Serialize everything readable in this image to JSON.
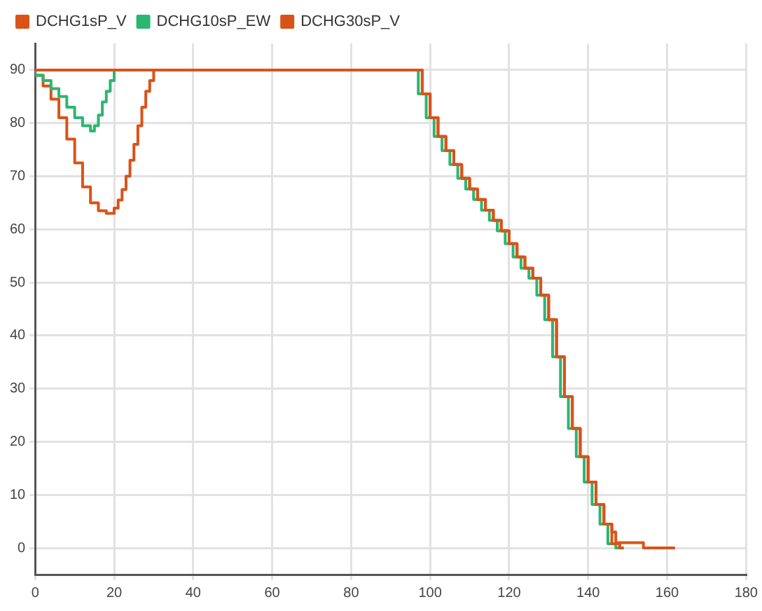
{
  "chart_data": {
    "type": "step",
    "xlim": [
      0,
      180
    ],
    "xticks": [
      0,
      20,
      40,
      60,
      80,
      100,
      120,
      140,
      160,
      180
    ],
    "ylim": [
      -5,
      95
    ],
    "yticks": [
      0,
      10,
      20,
      30,
      40,
      50,
      60,
      70,
      80,
      90
    ],
    "grid": true,
    "legend": "top left",
    "marker": "none",
    "line_style": "solid",
    "series": [
      {
        "name": "DCHG1sP_V",
        "color": "#d95319",
        "x": [
          0,
          98,
          100,
          102,
          104,
          106,
          108,
          110,
          112,
          114,
          116,
          118,
          120,
          122,
          124,
          126,
          128,
          130,
          132,
          134,
          136,
          138,
          140,
          142,
          144,
          146,
          148,
          149
        ],
        "values": [
          90,
          90,
          85.5,
          81,
          77.5,
          74.8,
          72.2,
          69.6,
          67.6,
          65.6,
          63.6,
          61.7,
          59.7,
          57.3,
          54.8,
          52.7,
          50.8,
          47.6,
          43,
          36,
          28.5,
          22.5,
          17.2,
          12.4,
          8.2,
          4.5,
          0.8,
          0
        ]
      },
      {
        "name": "DCHG10sP_EW",
        "color": "#2bb673",
        "x": [
          0,
          2,
          4,
          6,
          8,
          10,
          12,
          14,
          15,
          16,
          17,
          18,
          19,
          20,
          21,
          97,
          99,
          101,
          103,
          105,
          107,
          109,
          111,
          113,
          115,
          117,
          119,
          121,
          123,
          125,
          127,
          129,
          131,
          133,
          135,
          137,
          139,
          141,
          143,
          145,
          147,
          148,
          149
        ],
        "values": [
          90,
          89,
          88,
          86.5,
          85,
          83,
          81,
          79.5,
          78.5,
          79.5,
          81.5,
          84,
          86,
          88,
          90,
          90,
          85.5,
          81,
          77.5,
          74.8,
          72.2,
          69.6,
          67.6,
          65.6,
          63.6,
          61.7,
          59.7,
          57.3,
          54.8,
          52.7,
          50.8,
          47.6,
          43,
          36,
          28.5,
          22.5,
          17.2,
          12.4,
          8.2,
          4.5,
          0.8,
          0,
          0
        ]
      },
      {
        "name": "DCHG30sP_V",
        "color": "#d95319",
        "x": [
          0,
          2,
          4,
          6,
          8,
          10,
          12,
          14,
          16,
          18,
          19,
          20,
          21,
          22,
          23,
          24,
          25,
          26,
          27,
          28,
          29,
          30,
          31,
          98,
          100,
          102,
          104,
          106,
          108,
          110,
          112,
          114,
          116,
          118,
          120,
          122,
          124,
          126,
          128,
          130,
          132,
          134,
          136,
          138,
          140,
          142,
          144,
          146,
          147,
          154,
          155,
          162
        ],
        "values": [
          90,
          89,
          87,
          84.5,
          81,
          77,
          72.5,
          68,
          65,
          63.5,
          63,
          63,
          64,
          65.5,
          67.5,
          70,
          73,
          76,
          79.5,
          83,
          86,
          88,
          90,
          90,
          85.5,
          81,
          77.5,
          74.8,
          72.2,
          69.6,
          67.6,
          65.6,
          63.6,
          61.7,
          59.7,
          57.3,
          54.8,
          52.7,
          50.8,
          47.6,
          43,
          36,
          28.5,
          22.5,
          17.2,
          12.4,
          8.2,
          4.5,
          3,
          1,
          0,
          0
        ]
      }
    ]
  }
}
